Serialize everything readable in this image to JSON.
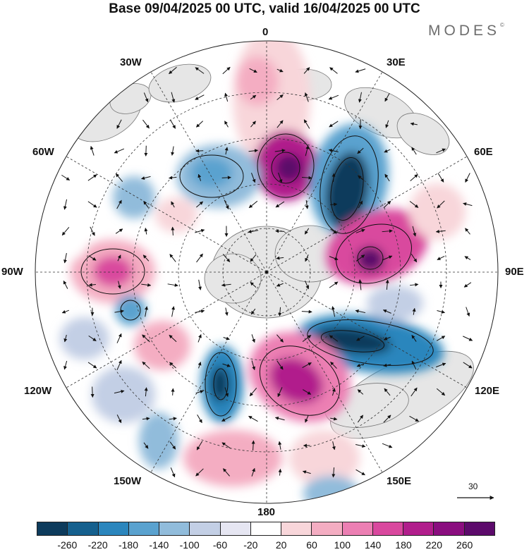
{
  "title": "Base 09/04/2025 00 UTC, valid 16/04/2025 00 UTC",
  "brand": "MODES",
  "brand_mark": "©",
  "longitude_labels": {
    "lon_0": "0",
    "lon_30e": "30E",
    "lon_60e": "60E",
    "lon_90e": "90E",
    "lon_120e": "120E",
    "lon_150e": "150E",
    "lon_180": "180",
    "lon_150w": "150W",
    "lon_120w": "120W",
    "lon_90w": "90W",
    "lon_60w": "60W",
    "lon_30w": "30W"
  },
  "reference_vector": {
    "label": "30"
  },
  "colorbar": {
    "colors": [
      "#0d3b5c",
      "#15608e",
      "#2b86bd",
      "#5aa2cf",
      "#91bcdb",
      "#c3cfe5",
      "#e6e6f2",
      "#ffffff",
      "#f8d6da",
      "#f4adc2",
      "#ec7fb3",
      "#d9489e",
      "#b11e8c",
      "#8a0e7f",
      "#5c0a6b"
    ],
    "tick_labels": [
      "-260",
      "-220",
      "-180",
      "-140",
      "-100",
      "-60",
      "-20",
      "20",
      "60",
      "100",
      "140",
      "180",
      "220",
      "260"
    ]
  },
  "map_colors": {
    "land": "#e6e6e6",
    "coast": "#777777",
    "grid": "#333333",
    "arrow": "#111111"
  }
}
